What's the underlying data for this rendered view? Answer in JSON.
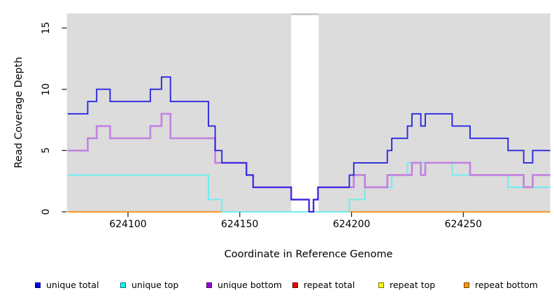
{
  "figure": {
    "y_axis": {
      "label": "Read Coverage Depth",
      "tick_values": [
        0,
        5,
        10,
        15
      ]
    },
    "x_axis": {
      "label": "Coordinate in Reference Genome",
      "tick_values": [
        624100,
        624150,
        624200,
        624250
      ]
    }
  },
  "legend": {
    "items": [
      {
        "label": "unique total",
        "color": "#0000EE"
      },
      {
        "label": "unique top",
        "color": "#00FFFF"
      },
      {
        "label": "unique bottom",
        "color": "#9A00E0"
      },
      {
        "label": "repeat total",
        "color": "#EE0000"
      },
      {
        "label": "repeat top",
        "color": "#FFFF00"
      },
      {
        "label": "repeat bottom",
        "color": "#FF9900"
      }
    ]
  },
  "chart_data": {
    "type": "line",
    "subtype": "step",
    "title": "",
    "xlabel": "Coordinate in Reference Genome",
    "ylabel": "Read Coverage Depth",
    "xlim": [
      624072.7,
      624288.9
    ],
    "ylim": [
      0,
      16.2
    ],
    "x_ticks": [
      624100,
      624150,
      624200,
      624250
    ],
    "y_ticks": [
      0,
      5,
      10,
      15
    ],
    "grid": false,
    "legend_position": "bottom",
    "plot_background": "#DCDCDC",
    "masked_white_band_x": [
      624173,
      624185.3
    ],
    "masked_band_top_cap_color": "#BDBDBD",
    "series": [
      {
        "name": "unique total",
        "legend_color": "#0000EE",
        "line_color": "#2A28E0",
        "line_width": 1.9,
        "steps": [
          [
            624073,
            8
          ],
          [
            624082,
            9
          ],
          [
            624086,
            10
          ],
          [
            624092,
            9
          ],
          [
            624110,
            10
          ],
          [
            624115,
            11
          ],
          [
            624119,
            9
          ],
          [
            624136,
            7
          ],
          [
            624139,
            5
          ],
          [
            624142,
            4
          ],
          [
            624153,
            3
          ],
          [
            624156,
            2
          ],
          [
            624173,
            1
          ],
          [
            624181,
            0
          ],
          [
            624183,
            1
          ],
          [
            624185,
            2
          ],
          [
            624199,
            3
          ],
          [
            624201,
            4
          ],
          [
            624216,
            5
          ],
          [
            624218,
            6
          ],
          [
            624225,
            7
          ],
          [
            624227,
            8
          ],
          [
            624231,
            7
          ],
          [
            624233,
            8
          ],
          [
            624245,
            7
          ],
          [
            624253,
            6
          ],
          [
            624270,
            5
          ],
          [
            624277,
            4
          ],
          [
            624281,
            5
          ]
        ]
      },
      {
        "name": "unique top",
        "legend_color": "#00FFFF",
        "line_color": "#74ECEE",
        "line_width": 2.1,
        "steps": [
          [
            624073,
            3
          ],
          [
            624136,
            1
          ],
          [
            624142,
            0
          ],
          [
            624199,
            1
          ],
          [
            624206,
            2
          ],
          [
            624218,
            3
          ],
          [
            624225,
            4
          ],
          [
            624245,
            3
          ],
          [
            624270,
            2
          ]
        ]
      },
      {
        "name": "unique bottom",
        "legend_color": "#9A00E0",
        "line_color": "#C383E0",
        "line_width": 2.7,
        "steps": [
          [
            624073,
            5
          ],
          [
            624082,
            6
          ],
          [
            624086,
            7
          ],
          [
            624092,
            6
          ],
          [
            624110,
            7
          ],
          [
            624115,
            8
          ],
          [
            624119,
            6
          ],
          [
            624139,
            4
          ],
          [
            624153,
            3
          ],
          [
            624156,
            2
          ],
          [
            624173,
            1
          ],
          [
            624181,
            0
          ],
          [
            624183,
            1
          ],
          [
            624185,
            2
          ],
          [
            624201,
            3
          ],
          [
            624206,
            2
          ],
          [
            624216,
            3
          ],
          [
            624227,
            4
          ],
          [
            624231,
            3
          ],
          [
            624233,
            4
          ],
          [
            624253,
            3
          ],
          [
            624277,
            2
          ],
          [
            624281,
            3
          ]
        ]
      },
      {
        "name": "repeat total",
        "legend_color": "#EE0000",
        "line_color": "#EE0000",
        "line_width": 2,
        "steps": [
          [
            624073,
            0
          ]
        ]
      },
      {
        "name": "repeat top",
        "legend_color": "#FFFF00",
        "line_color": "#FFFF00",
        "line_width": 2,
        "steps": [
          [
            624073,
            0
          ]
        ]
      },
      {
        "name": "repeat bottom",
        "legend_color": "#FF9900",
        "line_color": "#FF9726",
        "line_width": 2,
        "steps": [
          [
            624073,
            0
          ]
        ]
      }
    ],
    "zero_line_overlap": {
      "note": "where unique top = 0 it overlaps the repeat lines at zero and renders green",
      "color": "#74C87A",
      "line_width": 1.8,
      "x_range": [
        624142,
        624199
      ],
      "value": 0
    }
  }
}
